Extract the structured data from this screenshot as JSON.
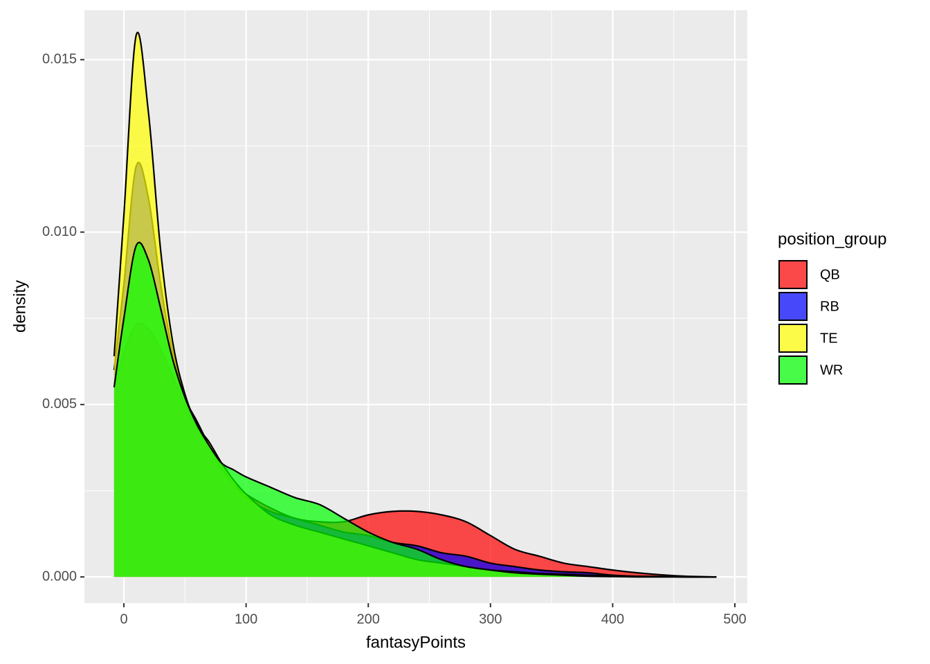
{
  "chart_data": {
    "type": "density",
    "x_label": "fantasyPoints",
    "y_label": "density",
    "legend_title": "position_group",
    "legend_position": "right",
    "x": [
      -8,
      0,
      10,
      20,
      30,
      40,
      50,
      60,
      70,
      80,
      90,
      100,
      120,
      140,
      160,
      180,
      200,
      220,
      240,
      260,
      280,
      300,
      320,
      340,
      360,
      380,
      400,
      420,
      440,
      460,
      485
    ],
    "alpha": 0.7,
    "series": [
      {
        "name": "QB",
        "color": "#ff0000",
        "values": [
          0.0055,
          0.0065,
          0.0073,
          0.0072,
          0.0066,
          0.0058,
          0.005,
          0.0043,
          0.0037,
          0.0031,
          0.0027,
          0.0024,
          0.002,
          0.0017,
          0.0016,
          0.0016,
          0.0018,
          0.0019,
          0.0019,
          0.0018,
          0.0016,
          0.0012,
          0.0008,
          0.0006,
          0.0004,
          0.0003,
          0.0002,
          0.00012,
          6e-05,
          2e-05,
          0
        ]
      },
      {
        "name": "RB",
        "color": "#0000ff",
        "values": [
          0.006,
          0.0085,
          0.0119,
          0.011,
          0.0085,
          0.0065,
          0.0052,
          0.0045,
          0.0038,
          0.0032,
          0.0027,
          0.0023,
          0.0019,
          0.0017,
          0.0015,
          0.0013,
          0.0012,
          0.001,
          0.0009,
          0.0007,
          0.0006,
          0.0004,
          0.0003,
          0.0002,
          0.00015,
          0.00012,
          5e-05,
          2e-05,
          1e-05,
          0,
          0
        ]
      },
      {
        "name": "TE",
        "color": "#ffff00",
        "values": [
          0.0064,
          0.0105,
          0.0157,
          0.0135,
          0.0095,
          0.0068,
          0.0053,
          0.0044,
          0.0039,
          0.0033,
          0.0028,
          0.0024,
          0.0018,
          0.0015,
          0.0013,
          0.0011,
          0.0009,
          0.0007,
          0.0005,
          0.0004,
          0.0003,
          0.0002,
          0.00015,
          0.0001,
          8e-05,
          5e-05,
          3e-05,
          2e-05,
          1e-05,
          0,
          0
        ]
      },
      {
        "name": "WR",
        "color": "#00ff00",
        "values": [
          0.0055,
          0.0075,
          0.0096,
          0.0092,
          0.0078,
          0.0063,
          0.0052,
          0.0044,
          0.0038,
          0.0033,
          0.0031,
          0.0029,
          0.0026,
          0.0023,
          0.0021,
          0.0017,
          0.0013,
          0.001,
          0.0008,
          0.0005,
          0.0003,
          0.0002,
          0.00012,
          8e-05,
          5e-05,
          2e-05,
          1e-05,
          0,
          0,
          0,
          0
        ]
      }
    ],
    "xlim": [
      -32.3,
      510.2
    ],
    "ylim": [
      -0.00076,
      0.01643
    ],
    "xticks": [
      0,
      100,
      200,
      300,
      400,
      500
    ],
    "x_minor_ticks": [
      50,
      150,
      250,
      350,
      450
    ],
    "yticks": [
      {
        "value": 0,
        "label": "0.000"
      },
      {
        "value": 0.005,
        "label": "0.005"
      },
      {
        "value": 0.01,
        "label": "0.010"
      },
      {
        "value": 0.015,
        "label": "0.015"
      }
    ],
    "y_minor_ticks": [
      0.0025,
      0.0075,
      0.0125
    ],
    "grid": true
  }
}
